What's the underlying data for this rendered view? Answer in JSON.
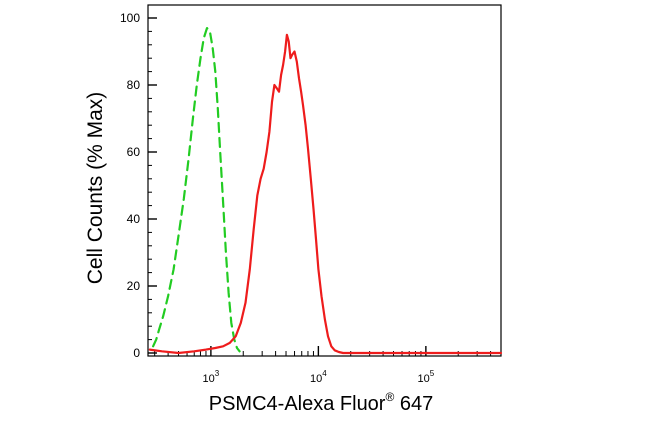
{
  "chart_data": {
    "type": "line",
    "title": "",
    "xlabel": "PSMC4-Alexa Fluor",
    "xlabel_superscript": "®",
    "xlabel_suffix": " 647",
    "ylabel": "Cell Counts (% Max)",
    "x_scale": "log",
    "xlim": [
      260,
      500000
    ],
    "ylim": [
      0,
      100
    ],
    "y_ticks": [
      0,
      20,
      40,
      60,
      80,
      100
    ],
    "y_tick_labels": [
      "0",
      "20",
      "40",
      "60",
      "80",
      "100"
    ],
    "x_ticks": [
      1000,
      10000,
      100000
    ],
    "x_tick_labels": [
      {
        "base": "10",
        "exp": "3"
      },
      {
        "base": "10",
        "exp": "4"
      },
      {
        "base": "10",
        "exp": "5"
      }
    ],
    "grid": false,
    "legend": "none",
    "series": [
      {
        "color": "#22cc22",
        "dash": "dashed",
        "x": [
          290,
          310,
          330,
          360,
          400,
          450,
          500,
          560,
          620,
          680,
          740,
          800,
          860,
          920,
          980,
          1040,
          1100,
          1160,
          1220,
          1300,
          1380,
          1460,
          1550,
          1650,
          1750,
          1850
        ],
        "y": [
          2,
          4,
          7,
          11,
          17,
          25,
          35,
          46,
          58,
          70,
          80,
          88,
          94,
          97,
          96,
          91,
          84,
          73,
          60,
          45,
          30,
          18,
          9,
          4,
          1.5,
          0.5
        ]
      },
      {
        "color": "#ee1c1c",
        "dash": "solid",
        "x": [
          270,
          350,
          500,
          700,
          900,
          1100,
          1300,
          1500,
          1700,
          1900,
          2100,
          2300,
          2500,
          2700,
          2900,
          3100,
          3300,
          3500,
          3700,
          3900,
          4100,
          4300,
          4500,
          4700,
          4900,
          5100,
          5300,
          5500,
          5700,
          6000,
          6300,
          6600,
          6900,
          7200,
          7600,
          8000,
          8500,
          9000,
          9500,
          10000,
          10700,
          11500,
          12300,
          13200,
          14200,
          15500,
          17000,
          20000,
          30000,
          60000,
          150000,
          500000
        ],
        "y": [
          1,
          0.5,
          0,
          0.5,
          1,
          1.5,
          2,
          3,
          5,
          9,
          15,
          25,
          37,
          47,
          52,
          55,
          60,
          66,
          75,
          80,
          79,
          78,
          83,
          86,
          90,
          95,
          93,
          88,
          89,
          90,
          87,
          82,
          78,
          74,
          68,
          61,
          52,
          43,
          34,
          25,
          17,
          10,
          5,
          2,
          0.8,
          0.3,
          0,
          0,
          0,
          0,
          0,
          0
        ]
      }
    ]
  }
}
